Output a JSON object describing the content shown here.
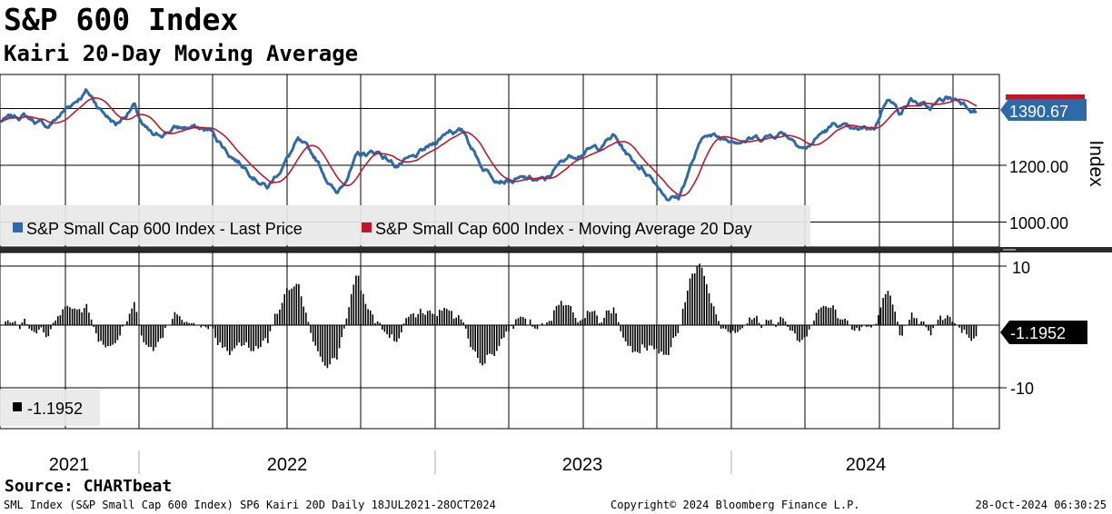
{
  "title": "S&P 600 Index",
  "subtitle": "Kairi 20-Day Moving Average",
  "source": "Source: CHARTbeat",
  "footer": {
    "left": "SML Index (S&P Small Cap 600 Index) SP6 Kairi 20D  Daily 18JUL2021-28OCT2024",
    "center": "Copyright© 2024 Bloomberg Finance L.P.",
    "right": "28-Oct-2024 06:30:25"
  },
  "colors": {
    "price": "#2e6aa8",
    "ma": "#c0182a",
    "histogram": "#000000",
    "grid": "#000000",
    "legend_bg": "#e8e8e8"
  },
  "chart_data": [
    {
      "type": "line",
      "title": "S&P 600 Index",
      "ylabel": "Index",
      "ylim": [
        920,
        1510
      ],
      "yticks": [
        1000,
        1200
      ],
      "ytick_labels": [
        "1000.00",
        "1200.00"
      ],
      "xlabels": [
        "2021",
        "2022",
        "2023",
        "2024"
      ],
      "last_value_label": "1390.67",
      "legend": [
        "S&P Small Cap 600 Index - Last Price",
        "S&P Small Cap 600 Index - Moving Average 20 Day"
      ],
      "x_start": "2021-07-18",
      "x_end": "2024-10-28",
      "anchors_time_years": [
        2021.54,
        2021.62,
        2021.7,
        2021.76,
        2021.83,
        2021.88,
        2021.93,
        2021.99,
        2022.02,
        2022.06,
        2022.12,
        2022.18,
        2022.25,
        2022.31,
        2022.37,
        2022.44,
        2022.48,
        2022.54,
        2022.6,
        2022.67,
        2022.74,
        2022.81,
        2022.87,
        2022.93,
        2022.99,
        2023.05,
        2023.1,
        2023.16,
        2023.2,
        2023.26,
        2023.31,
        2023.37,
        2023.44,
        2023.5,
        2023.55,
        2023.6,
        2023.66,
        2023.72,
        2023.78,
        2023.82,
        2023.86,
        2023.91,
        2023.96,
        2024.0,
        2024.05,
        2024.1,
        2024.17,
        2024.25,
        2024.3,
        2024.35,
        2024.41,
        2024.48,
        2024.52,
        2024.56,
        2024.6,
        2024.66,
        2024.72,
        2024.77,
        2024.82
      ],
      "anchors_price": [
        1350,
        1370,
        1330,
        1390,
        1455,
        1390,
        1340,
        1405,
        1330,
        1290,
        1325,
        1330,
        1315,
        1240,
        1190,
        1125,
        1185,
        1280,
        1220,
        1100,
        1230,
        1245,
        1200,
        1220,
        1265,
        1325,
        1310,
        1195,
        1165,
        1150,
        1150,
        1145,
        1225,
        1250,
        1260,
        1300,
        1220,
        1170,
        1095,
        1090,
        1200,
        1310,
        1290,
        1295,
        1290,
        1295,
        1315,
        1260,
        1310,
        1340,
        1310,
        1330,
        1440,
        1385,
        1425,
        1390,
        1430,
        1420,
        1390
      ]
    },
    {
      "type": "bar",
      "title": "Kairi 20-Day Moving Average",
      "ylim": [
        -18,
        12.5
      ],
      "yticks": [
        -10,
        10
      ],
      "ytick_labels": [
        "-10",
        "10"
      ],
      "last_value_label": "-1.1952",
      "legend": [
        "-1.1952"
      ]
    }
  ]
}
